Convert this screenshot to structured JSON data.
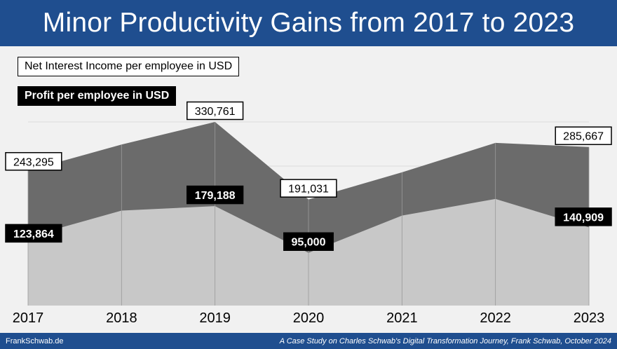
{
  "title": "Minor Productivity Gains from 2017 to 2023",
  "footer": {
    "left": "FrankSchwab.de",
    "right": "A Case Study on Charles Schwab's Digital Transformation Journey, Frank Schwab, October 2024"
  },
  "chart_data": {
    "type": "area",
    "x": [
      "2017",
      "2018",
      "2019",
      "2020",
      "2021",
      "2022",
      "2023"
    ],
    "series": [
      {
        "name": "Net Interest Income per employee in USD",
        "values": [
          243295,
          290000,
          330761,
          191031,
          240000,
          293000,
          285667
        ],
        "labels": [
          "243,295",
          "",
          "330,761",
          "191,031",
          "",
          "",
          "285,667"
        ],
        "color": "#6b6b6b"
      },
      {
        "name": "Profit per employee in USD",
        "values": [
          123864,
          171000,
          179188,
          95000,
          162000,
          192000,
          140909
        ],
        "labels": [
          "123,864",
          "",
          "179,188",
          "95,000",
          "",
          "",
          "140,909"
        ],
        "color": "#c8c8c8"
      }
    ],
    "ylim": [
      0,
      350000
    ],
    "grid": true,
    "legend": "top-left"
  }
}
